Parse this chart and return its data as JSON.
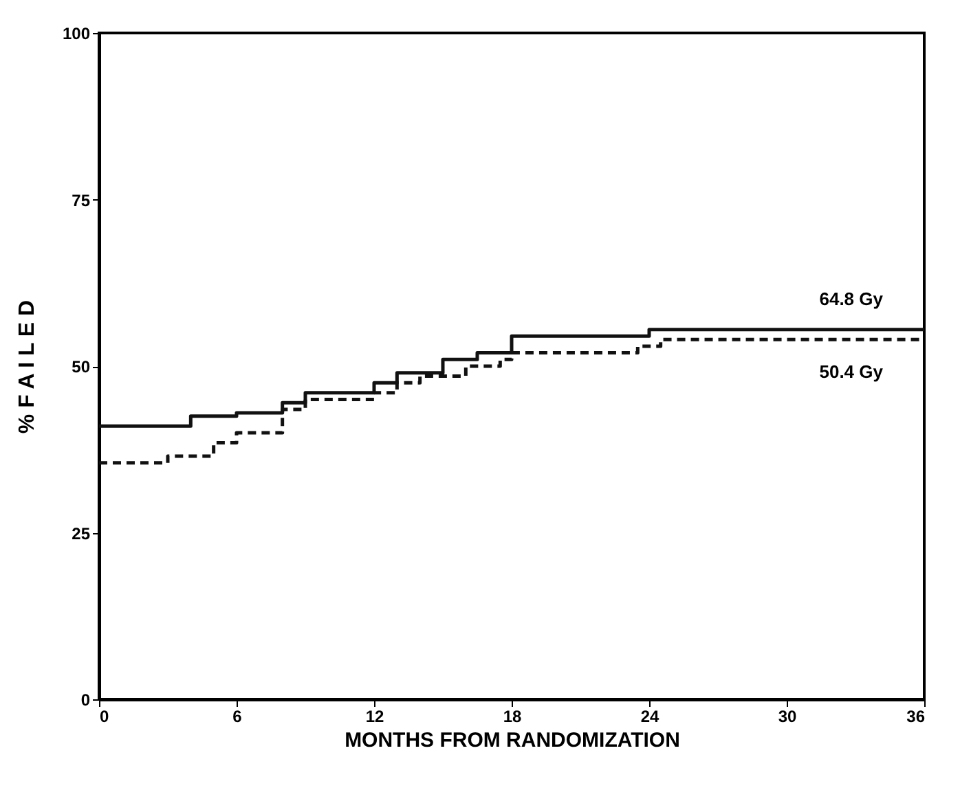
{
  "chart_data": {
    "type": "step",
    "xlabel": "MONTHS FROM RANDOMIZATION",
    "ylabel": "% F A I L E D",
    "xlim": [
      0,
      36
    ],
    "xticks": [
      0,
      6,
      12,
      18,
      24,
      30,
      36
    ],
    "ylim": [
      0,
      100
    ],
    "yticks": [
      0,
      25,
      50,
      75,
      100
    ],
    "grid": false,
    "series": [
      {
        "name": "64.8 Gy",
        "color": "#111111",
        "line_style": "solid",
        "x": [
          0,
          4,
          6,
          8,
          9,
          12,
          13,
          15,
          16.5,
          18,
          24,
          36
        ],
        "values": [
          41,
          42.5,
          43,
          44.5,
          46,
          47.5,
          49,
          51,
          52,
          54.5,
          55.5,
          55.5
        ]
      },
      {
        "name": "50.4 Gy",
        "color": "#111111",
        "line_style": "dashed",
        "x": [
          0,
          3,
          5,
          6,
          8,
          9,
          12,
          13,
          14,
          16,
          17.5,
          18,
          23.5,
          24.5,
          36
        ],
        "values": [
          35.5,
          36.5,
          38.5,
          40,
          43.5,
          45,
          46,
          47.5,
          48.5,
          50,
          51,
          52,
          53,
          54,
          54
        ]
      }
    ]
  }
}
